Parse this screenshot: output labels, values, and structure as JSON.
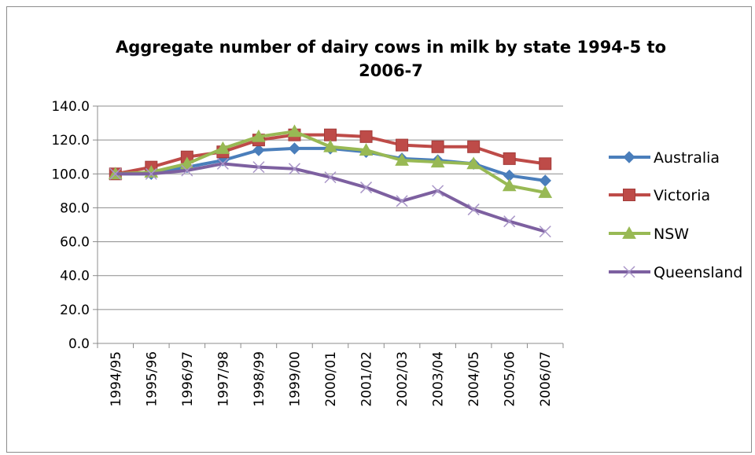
{
  "chart_data": {
    "type": "line",
    "title_lines": [
      "Aggregate number of dairy cows in milk by state 1994-5 to",
      "2006-7"
    ],
    "xlabel": "",
    "ylabel": "",
    "categories": [
      "1994/95",
      "1995/96",
      "1996/97",
      "1997/98",
      "1998/99",
      "1999/00",
      "2000/01",
      "2001/02",
      "2002/03",
      "2003/04",
      "2004/05",
      "2005/06",
      "2006/07"
    ],
    "ylim": [
      0,
      140
    ],
    "yticks": [
      "0.0",
      "20.0",
      "40.0",
      "60.0",
      "80.0",
      "100.0",
      "120.0",
      "140.0"
    ],
    "grid": true,
    "legend_position": "right",
    "series": [
      {
        "name": "Australia",
        "color": "#4a7ebb",
        "marker": "diamond",
        "values": [
          100,
          100,
          104,
          108,
          114,
          115,
          115,
          113,
          109,
          108,
          106,
          99,
          96
        ]
      },
      {
        "name": "Victoria",
        "color": "#be4b48",
        "marker": "square",
        "values": [
          100,
          104,
          110,
          113,
          120,
          123,
          123,
          122,
          117,
          116,
          116,
          109,
          106
        ]
      },
      {
        "name": "NSW",
        "color": "#98b954",
        "marker": "triangle",
        "values": [
          100,
          101,
          106,
          115,
          122,
          125,
          116,
          114,
          108,
          107,
          106,
          93,
          89
        ]
      },
      {
        "name": "Queensland",
        "color": "#7d60a0",
        "marker": "x",
        "values": [
          100,
          100,
          102,
          106,
          104,
          103,
          98,
          92,
          84,
          90,
          79,
          72,
          66
        ]
      }
    ]
  }
}
